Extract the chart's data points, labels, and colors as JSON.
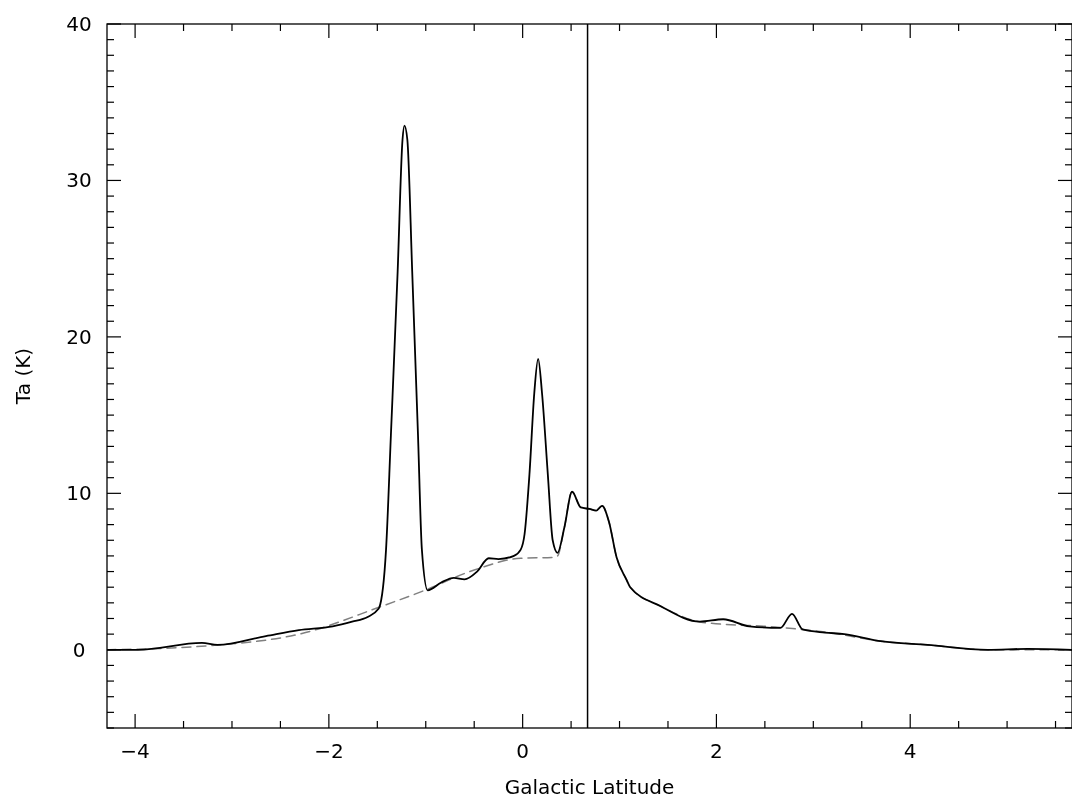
{
  "chart_data": {
    "type": "line",
    "xlabel": "Galactic Latitude",
    "ylabel": "Ta (K)",
    "xlim": [
      -4.29,
      5.67
    ],
    "ylim": [
      -5,
      40
    ],
    "xticks": [
      -4,
      {
        "value": -3.5,
        "label": null
      },
      {
        "value": -3,
        "label": null
      },
      {
        "value": -2.5,
        "label": null
      },
      -2,
      {
        "value": -1.5,
        "label": null
      },
      {
        "value": -1,
        "label": null
      },
      {
        "value": -0.5,
        "label": null
      },
      0,
      {
        "value": 0.5,
        "label": null
      },
      {
        "value": 1,
        "label": null
      },
      {
        "value": 1.5,
        "label": null
      },
      2,
      {
        "value": 2.5,
        "label": null
      },
      {
        "value": 3,
        "label": null
      },
      {
        "value": 3.5,
        "label": null
      },
      4,
      {
        "value": 4.5,
        "label": null
      },
      {
        "value": 5,
        "label": null
      },
      {
        "value": 5.5,
        "label": null
      }
    ],
    "yticks": [
      {
        "value": -5,
        "label": null
      },
      {
        "value": -4,
        "label": null
      },
      {
        "value": -3,
        "label": null
      },
      {
        "value": -2,
        "label": null
      },
      {
        "value": -1,
        "label": null
      },
      0,
      {
        "value": 1,
        "label": null
      },
      {
        "value": 2,
        "label": null
      },
      {
        "value": 3,
        "label": null
      },
      {
        "value": 4,
        "label": null
      },
      {
        "value": 5,
        "label": null
      },
      {
        "value": 6,
        "label": null
      },
      {
        "value": 7,
        "label": null
      },
      {
        "value": 8,
        "label": null
      },
      {
        "value": 9,
        "label": null
      },
      10,
      {
        "value": 11,
        "label": null
      },
      {
        "value": 12,
        "label": null
      },
      {
        "value": 13,
        "label": null
      },
      {
        "value": 14,
        "label": null
      },
      {
        "value": 15,
        "label": null
      },
      {
        "value": 16,
        "label": null
      },
      {
        "value": 17,
        "label": null
      },
      {
        "value": 18,
        "label": null
      },
      {
        "value": 19,
        "label": null
      },
      20,
      {
        "value": 21,
        "label": null
      },
      {
        "value": 22,
        "label": null
      },
      {
        "value": 23,
        "label": null
      },
      {
        "value": 24,
        "label": null
      },
      {
        "value": 25,
        "label": null
      },
      {
        "value": 26,
        "label": null
      },
      {
        "value": 27,
        "label": null
      },
      {
        "value": 28,
        "label": null
      },
      {
        "value": 29,
        "label": null
      },
      30,
      {
        "value": 31,
        "label": null
      },
      {
        "value": 32,
        "label": null
      },
      {
        "value": 33,
        "label": null
      },
      {
        "value": 34,
        "label": null
      },
      {
        "value": 35,
        "label": null
      },
      {
        "value": 36,
        "label": null
      },
      {
        "value": 37,
        "label": null
      },
      {
        "value": 38,
        "label": null
      },
      {
        "value": 39,
        "label": null
      },
      40
    ],
    "grid": false,
    "ref_lines": [
      {
        "axis": "x",
        "value": 0.67,
        "color": "#000000"
      }
    ],
    "series": [
      {
        "color": "#808080",
        "line_style": "dashed",
        "x": [
          -4.29,
          -3.26,
          -2.24,
          -1.49,
          -1.01,
          -0.5,
          -0.02,
          0.3,
          0.36,
          0.43,
          0.51,
          0.6,
          0.69,
          0.76,
          0.82,
          0.89,
          0.97,
          1.07,
          1.11,
          1.42,
          1.86,
          2.61,
          3.16,
          3.67,
          4.18,
          4.8,
          5.67
        ],
        "values": [
          0,
          0.25,
          1.1,
          2.7,
          3.8,
          5.1,
          5.85,
          5.9,
          6.0,
          7.8,
          10.1,
          9.1,
          9.0,
          8.9,
          9.2,
          8.2,
          5.9,
          4.5,
          4.0,
          2.8,
          1.75,
          1.45,
          1.1,
          0.57,
          0.31,
          0,
          0
        ]
      },
      {
        "color": "#000000",
        "line_style": "solid",
        "x": [
          -4.29,
          -3.97,
          -3.31,
          -3.15,
          -2.65,
          -2.31,
          -1.96,
          -1.76,
          -1.6,
          -1.49,
          -1.48,
          -1.41,
          -1.36,
          -1.29,
          -1.24,
          -1.22,
          -1.19,
          -1.14,
          -1.08,
          -1.04,
          -0.98,
          -0.84,
          -0.71,
          -0.6,
          -0.47,
          -0.35,
          -0.25,
          -0.09,
          -0.02,
          0.02,
          0.07,
          0.12,
          0.16,
          0.2,
          0.26,
          0.31,
          0.36,
          0.43,
          0.51,
          0.6,
          0.69,
          0.76,
          0.82,
          0.89,
          0.97,
          1.07,
          1.11,
          1.42,
          1.83,
          2.07,
          2.34,
          2.66,
          2.78,
          2.89,
          3.12,
          3.32,
          3.67,
          4.18,
          4.8,
          5.21,
          5.67
        ],
        "values": [
          0,
          0,
          0.44,
          0.31,
          0.88,
          1.26,
          1.5,
          1.8,
          2.1,
          2.6,
          2.7,
          6.4,
          13.7,
          24.2,
          32.6,
          33.5,
          32.6,
          24.2,
          13.7,
          6.4,
          3.8,
          4.3,
          4.6,
          4.5,
          5.0,
          5.85,
          5.8,
          6.0,
          6.4,
          7.4,
          11.2,
          16.4,
          18.6,
          16.4,
          11.2,
          7.0,
          6.2,
          7.8,
          10.1,
          9.1,
          9.0,
          8.9,
          9.2,
          8.2,
          5.9,
          4.5,
          4.0,
          2.8,
          1.8,
          1.95,
          1.5,
          1.4,
          2.3,
          1.3,
          1.1,
          1.0,
          0.57,
          0.31,
          0,
          0.06,
          0
        ]
      }
    ]
  }
}
